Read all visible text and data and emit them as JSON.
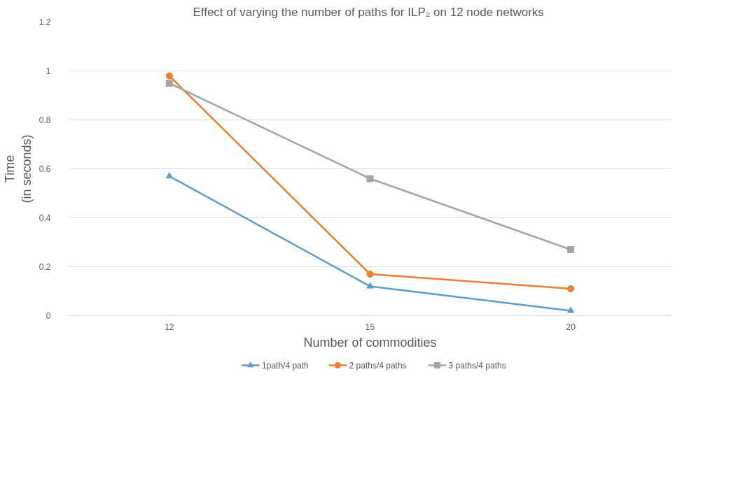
{
  "chart_data": {
    "type": "line",
    "title": "Effect of  varying the number of paths for ILP₂ on 12 node networks",
    "xlabel": "Number of commodities",
    "ylabel": "Time\n(in seconds)",
    "categories": [
      "12",
      "15",
      "20"
    ],
    "ylim": [
      0,
      1.2
    ],
    "yticks": [
      0,
      0.2,
      0.4,
      0.6,
      0.8,
      1,
      1.2
    ],
    "grid": "y",
    "legend": "bottom",
    "series": [
      {
        "name": "1path/4 path",
        "color": "#5b9bd5",
        "marker": "triangle",
        "values": [
          0.57,
          0.12,
          0.02
        ]
      },
      {
        "name": "2 paths/4 paths",
        "color": "#ed7d31",
        "marker": "circle",
        "values": [
          0.98,
          0.17,
          0.11
        ]
      },
      {
        "name": "3 paths/4 paths",
        "color": "#a5a5a5",
        "marker": "square",
        "values": [
          0.95,
          0.56,
          0.27
        ]
      }
    ]
  }
}
